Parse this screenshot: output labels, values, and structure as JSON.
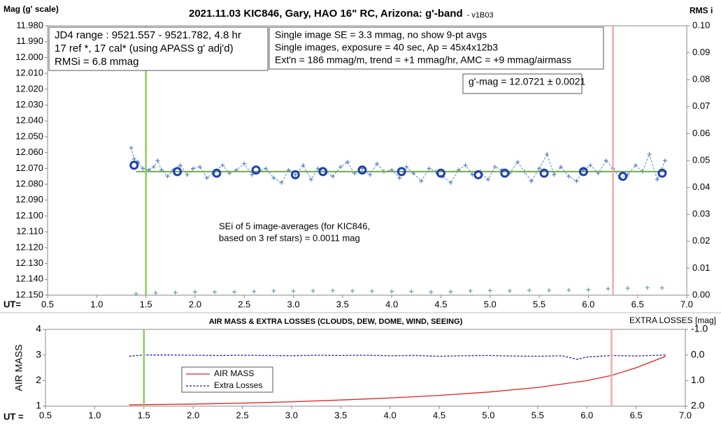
{
  "chart_data": [
    {
      "type": "scatter",
      "title": "2021.11.03 KIC846, Gary, HAO 16\" RC, Arizona: g'-band",
      "subtitle": "- v1B03",
      "ylabel": "Mag (g' scale)",
      "y2label": "RMS i",
      "xlabel": "UT=",
      "xlim": [
        0.5,
        7.0
      ],
      "xticks": [
        0.5,
        {
          "value": 1.0,
          "label": "1.0"
        },
        1.5,
        {
          "value": 2.0,
          "label": "2.0"
        },
        2.5,
        {
          "value": 3.0,
          "label": "3.0"
        },
        3.5,
        {
          "value": 4.0,
          "label": "4.0"
        },
        4.5,
        {
          "value": 5.0,
          "label": "5.0"
        },
        5.5,
        {
          "value": 6.0,
          "label": "6.0"
        },
        6.5,
        {
          "value": 7.0,
          "label": "7.0"
        }
      ],
      "ylim": [
        12.15,
        11.98
      ],
      "yticks": [
        {
          "value": 11.98,
          "label": "11.980"
        },
        {
          "value": 11.99,
          "label": "11.990"
        },
        {
          "value": 12.0,
          "label": "12.000"
        },
        {
          "value": 12.01,
          "label": "12.010"
        },
        {
          "value": 12.02,
          "label": "12.020"
        },
        {
          "value": 12.03,
          "label": "12.030"
        },
        {
          "value": 12.04,
          "label": "12.040"
        },
        {
          "value": 12.05,
          "label": "12.050"
        },
        {
          "value": 12.06,
          "label": "12.060"
        },
        {
          "value": 12.07,
          "label": "12.070"
        },
        {
          "value": 12.08,
          "label": "12.080"
        },
        {
          "value": 12.09,
          "label": "12.090"
        },
        {
          "value": 12.1,
          "label": "12.100"
        },
        {
          "value": 12.11,
          "label": "12.110"
        },
        {
          "value": 12.12,
          "label": "12.120"
        },
        {
          "value": 12.13,
          "label": "12.130"
        },
        {
          "value": 12.14,
          "label": "12.140"
        },
        {
          "value": 12.15,
          "label": "12.150"
        }
      ],
      "y2lim": [
        0,
        0.1
      ],
      "y2ticks": [
        {
          "value": 0.1,
          "label": "0.10"
        },
        0.09,
        0.08,
        0.07,
        0.06,
        0.05,
        0.04,
        0.03,
        0.02,
        0.01,
        {
          "value": 0,
          "label": "0.00"
        }
      ],
      "vlines": [
        {
          "x": 1.5,
          "color": "#8fcc5c"
        },
        {
          "x": 6.25,
          "color": "#f4a9a9"
        }
      ],
      "series": [
        {
          "mode": "cross",
          "line_style": "dashed",
          "color": "#5b84c4",
          "x": [
            1.35,
            1.38,
            1.42,
            1.47,
            1.53,
            1.58,
            1.62,
            1.66,
            1.72,
            1.78,
            1.85,
            1.92,
            1.98,
            2.05,
            2.12,
            2.2,
            2.28,
            2.35,
            2.42,
            2.5,
            2.58,
            2.65,
            2.72,
            2.8,
            2.88,
            2.95,
            3.02,
            3.1,
            3.18,
            3.25,
            3.32,
            3.4,
            3.48,
            3.55,
            3.62,
            3.7,
            3.78,
            3.85,
            3.92,
            4.0,
            4.08,
            4.15,
            4.22,
            4.3,
            4.38,
            4.45,
            4.52,
            4.6,
            4.68,
            4.75,
            4.82,
            4.9,
            4.98,
            5.05,
            5.12,
            5.2,
            5.28,
            5.35,
            5.42,
            5.5,
            5.58,
            5.65,
            5.72,
            5.8,
            5.88,
            5.95,
            6.02,
            6.1,
            6.18,
            6.25,
            6.32,
            6.4,
            6.48,
            6.55,
            6.62,
            6.7,
            6.78
          ],
          "values": [
            12.057,
            12.064,
            12.066,
            12.07,
            12.071,
            12.069,
            12.065,
            12.071,
            12.075,
            12.071,
            12.068,
            12.074,
            12.07,
            12.069,
            12.076,
            12.072,
            12.068,
            12.073,
            12.071,
            12.067,
            12.074,
            12.072,
            12.07,
            12.076,
            12.079,
            12.071,
            12.074,
            12.068,
            12.077,
            12.07,
            12.072,
            12.075,
            12.069,
            12.066,
            12.073,
            12.07,
            12.074,
            12.067,
            12.072,
            12.071,
            12.076,
            12.069,
            12.073,
            12.078,
            12.07,
            12.072,
            12.075,
            12.079,
            12.071,
            12.068,
            12.074,
            12.072,
            12.077,
            12.069,
            12.071,
            12.073,
            12.066,
            12.072,
            12.078,
            12.07,
            12.061,
            12.074,
            12.069,
            12.075,
            12.078,
            12.071,
            12.068,
            12.073,
            12.065,
            12.07,
            12.076,
            12.074,
            12.068,
            12.072,
            12.061,
            12.077,
            12.065
          ]
        },
        {
          "mode": "line",
          "color": "#70ad47",
          "x": [
            1.4,
            6.8
          ],
          "values": [
            12.072,
            12.072
          ]
        },
        {
          "mode": "circle",
          "color": "#1f3fb0",
          "x": [
            1.38,
            1.82,
            2.22,
            2.62,
            3.02,
            3.3,
            3.7,
            4.1,
            4.5,
            4.88,
            5.15,
            5.55,
            5.95,
            6.35,
            6.75
          ],
          "values": [
            12.068,
            12.072,
            12.073,
            12.071,
            12.074,
            12.072,
            12.071,
            12.072,
            12.073,
            12.074,
            12.073,
            12.073,
            12.072,
            12.075,
            12.073
          ]
        },
        {
          "mode": "cross",
          "axis": "y2",
          "color": "#5f9eb0",
          "x": [
            1.4,
            1.6,
            1.8,
            2.0,
            2.2,
            2.4,
            2.6,
            2.8,
            3.0,
            3.2,
            3.4,
            3.6,
            3.8,
            4.0,
            4.2,
            4.4,
            4.6,
            4.8,
            5.0,
            5.2,
            5.4,
            5.6,
            5.8,
            6.0,
            6.2,
            6.4,
            6.6,
            6.75
          ],
          "values": [
            0.0005,
            0.0008,
            0.001,
            0.0012,
            0.0012,
            0.0012,
            0.0014,
            0.0016,
            0.0015,
            0.0016,
            0.0017,
            0.0016,
            0.0015,
            0.0014,
            0.0014,
            0.0012,
            0.0013,
            0.0016,
            0.0017,
            0.0016,
            0.0018,
            0.0018,
            0.0019,
            0.002,
            0.0024,
            0.0026,
            0.0028,
            0.0027
          ]
        }
      ],
      "annotations": [
        {
          "lines": [
            "JD4 range : 9521.557 - 9521.782,  4.8  hr",
            "17 ref *, 17 cal* (using APASS g' adj'd)",
            "RMSi = 6.8 mmag"
          ],
          "border": true
        },
        {
          "lines": [
            "Single image SE = 3.3 mmag, no show  9-pt avgs",
            "Single images, exposure = 40 sec, Ap = 45x4x12b3",
            "Ext'n = 186 mmag/m, trend = +1 mmag/hr, AMC = +9 mmag/airmass"
          ],
          "border": true
        },
        {
          "lines": [
            "g'-mag = 12.0721 ± 0.0021"
          ],
          "border": true
        },
        {
          "lines": [
            "SEi of 5 image-averages (for KIC846,",
            "based on 3 ref stars) = 0.0011 mag"
          ],
          "border": false
        }
      ]
    },
    {
      "type": "line",
      "title": "AIR MASS & EXTRA LOSSES (CLOUDS, DEW, DOME, WIND, SEEING)",
      "ylabel": "AIR MASS",
      "y2label": "EXTRA LOSSES [mag]",
      "xlabel": "UT =",
      "xlim": [
        0.5,
        7.0
      ],
      "xticks": [
        0.5,
        {
          "value": 1.0,
          "label": "1.0"
        },
        1.5,
        {
          "value": 2.0,
          "label": "2.0"
        },
        2.5,
        {
          "value": 3.0,
          "label": "3.0"
        },
        3.5,
        {
          "value": 4.0,
          "label": "4.0"
        },
        4.5,
        {
          "value": 5.0,
          "label": "5.0"
        },
        5.5,
        {
          "value": 6.0,
          "label": "6.0"
        },
        6.5,
        {
          "value": 7.0,
          "label": "7.0"
        }
      ],
      "ylim": [
        1,
        4
      ],
      "yticks": [
        4,
        3,
        2,
        1
      ],
      "y2lim": [
        2.0,
        -1.0
      ],
      "y2ticks": [
        {
          "value": -1.0,
          "label": "-1.0"
        },
        {
          "value": 0.0,
          "label": "0.0"
        },
        {
          "value": 1.0,
          "label": "1.0"
        },
        {
          "value": 2.0,
          "label": "2.0"
        }
      ],
      "vlines": [
        {
          "x": 1.5,
          "color": "#8fcc5c"
        },
        {
          "x": 6.25,
          "color": "#f4a9a9"
        }
      ],
      "series": [
        {
          "name": "AIR MASS",
          "mode": "line",
          "color": "#e02020",
          "x": [
            1.35,
            1.5,
            2.0,
            2.5,
            3.0,
            3.5,
            4.0,
            4.5,
            5.0,
            5.5,
            6.0,
            6.25,
            6.5,
            6.8
          ],
          "values": [
            1.05,
            1.06,
            1.08,
            1.12,
            1.17,
            1.24,
            1.32,
            1.42,
            1.55,
            1.73,
            2.0,
            2.2,
            2.5,
            2.95
          ]
        },
        {
          "name": "Extra Losses",
          "mode": "line",
          "line_style": "dashed",
          "axis": "y2",
          "color": "#1f1fa0",
          "x": [
            1.35,
            1.5,
            1.75,
            2.0,
            2.25,
            2.5,
            2.75,
            3.0,
            3.25,
            3.5,
            3.75,
            4.0,
            4.25,
            4.5,
            4.75,
            5.0,
            5.25,
            5.5,
            5.75,
            5.9,
            6.0,
            6.25,
            6.5,
            6.8
          ],
          "values": [
            0.05,
            0.0,
            0.0,
            0.01,
            0.02,
            0.01,
            0.02,
            0.03,
            0.01,
            0.02,
            0.01,
            0.03,
            0.02,
            0.05,
            0.03,
            0.02,
            0.04,
            0.05,
            0.03,
            0.17,
            0.08,
            0.02,
            0.04,
            0.0
          ]
        }
      ]
    }
  ]
}
